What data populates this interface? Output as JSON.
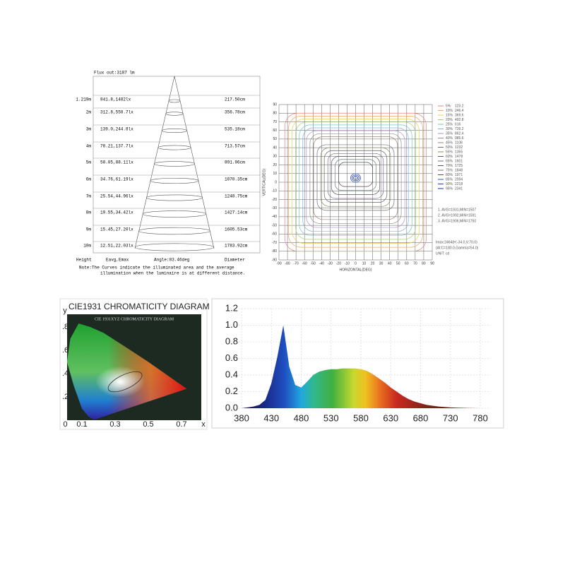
{
  "cone_diagram": {
    "flux": "Flux out:3187 lm",
    "rows": [
      [
        "1.219m",
        "841.8,1482lx",
        "217.50cm"
      ],
      [
        "2m",
        "312.8,550.7lx",
        "356.78cm"
      ],
      [
        "3m",
        "139.0,244.8lx",
        "535.18cm"
      ],
      [
        "4m",
        "78.21,137.7lx",
        "713.57cm"
      ],
      [
        "5m",
        "50.05,88.11lx",
        "891.96cm"
      ],
      [
        "6m",
        "34.76,61.19lx",
        "1070.35cm"
      ],
      [
        "7m",
        "25.54,44.96lx",
        "1248.75cm"
      ],
      [
        "8m",
        "19.55,34.42lx",
        "1427.14cm"
      ],
      [
        "9m",
        "15.45,27.20lx",
        "1605.53cm"
      ],
      [
        "10m",
        "12.51,22.03lx",
        "1783.92cm"
      ]
    ],
    "footer": [
      "Height",
      "Eavg,Emax",
      "Angle:83.46deg",
      "Diameter"
    ],
    "note": [
      "Note:The Curves indicate the illuminated area and the average",
      "illumination when the luminaire is at different distance."
    ]
  },
  "chart_data": [
    {
      "type": "contour",
      "x_label": "HORIZONTAL(DEG)",
      "y_label": "VERTICAL(DEG)",
      "xlim": [
        -90,
        90
      ],
      "ylim": [
        -90,
        90
      ],
      "xticks": [
        -90,
        -80,
        -70,
        -60,
        -50,
        -40,
        -30,
        -20,
        -10,
        0,
        10,
        20,
        30,
        40,
        50,
        60,
        70,
        80,
        90
      ],
      "yticks": [
        -90,
        -80,
        -70,
        -60,
        -50,
        -40,
        -30,
        -20,
        -10,
        0,
        10,
        20,
        30,
        40,
        50,
        60,
        70,
        80,
        90
      ],
      "grid": true,
      "levels": [
        {
          "name": "5%",
          "value": 123.2,
          "color": "#f08080"
        },
        {
          "name": "10%",
          "value": 246.4,
          "color": "#f4a460"
        },
        {
          "name": "15%",
          "value": 369.6,
          "color": "#e8d050"
        },
        {
          "name": "20%",
          "value": 492.8,
          "color": "#a0d070"
        },
        {
          "name": "25%",
          "value": 616.0,
          "color": "#70c8c0"
        },
        {
          "name": "30%",
          "value": 739.2,
          "color": "#80b0e0"
        },
        {
          "name": "35%",
          "value": 862.4,
          "color": "#b090d0"
        },
        {
          "name": "40%",
          "value": 985.6,
          "color": "#909090"
        },
        {
          "name": "45%",
          "value": 1108,
          "color": "#a08070"
        },
        {
          "name": "50%",
          "value": 1232,
          "color": "#707070"
        },
        {
          "name": "55%",
          "value": 1355,
          "color": "#8a8a6a"
        },
        {
          "name": "60%",
          "value": 1478,
          "color": "#606060"
        },
        {
          "name": "65%",
          "value": 1601,
          "color": "#7a6a8a"
        },
        {
          "name": "70%",
          "value": 1725,
          "color": "#555555"
        },
        {
          "name": "75%",
          "value": 1848,
          "color": "#6a7a7a"
        },
        {
          "name": "80%",
          "value": 1971,
          "color": "#505050"
        },
        {
          "name": "85%",
          "value": 2094,
          "color": "#3050c0"
        },
        {
          "name": "90%",
          "value": 2218,
          "color": "#2040b0"
        },
        {
          "name": "95%",
          "value": 2341,
          "color": "#1030a0"
        }
      ],
      "notes": [
        "1. AVG=1931,MIN=1507",
        "2. AVG=1992,MIN=1591",
        "3. AVG=1906,MIN=1750"
      ],
      "info": [
        "Imax:2464(H:-34.0,V:70.0)",
        "(At:C=180.0,Gamma=54.0)",
        "UNIT: cd"
      ]
    },
    {
      "type": "chromaticity",
      "title": "CIE1931 CHROMATICITY DIAGRAM",
      "inner_title": "CIE 1931XYZ CHROMATICITY DIAGRAM",
      "x_label": "x",
      "y_label": "y",
      "xlim": [
        0,
        0.8
      ],
      "ylim": [
        0,
        0.9
      ],
      "xticks": [
        0,
        0.1,
        0.3,
        0.5,
        0.7
      ],
      "yticks": [
        {
          "value": 0.2,
          "label": ".2"
        },
        {
          "value": 0.4,
          "label": ".4"
        },
        {
          "value": 0.6,
          "label": ".6"
        },
        {
          "value": 0.8,
          "label": ".8"
        }
      ]
    },
    {
      "type": "area",
      "x": [
        380,
        390,
        400,
        410,
        420,
        430,
        440,
        450,
        460,
        470,
        480,
        490,
        500,
        510,
        520,
        530,
        540,
        550,
        560,
        570,
        580,
        590,
        600,
        610,
        620,
        630,
        640,
        650,
        660,
        670,
        680,
        690,
        700,
        710,
        720,
        730,
        740,
        750,
        760,
        770,
        780
      ],
      "values": [
        0,
        0.01,
        0.02,
        0.04,
        0.1,
        0.3,
        0.62,
        1.0,
        0.5,
        0.28,
        0.25,
        0.32,
        0.4,
        0.44,
        0.46,
        0.47,
        0.47,
        0.48,
        0.48,
        0.48,
        0.47,
        0.45,
        0.41,
        0.36,
        0.31,
        0.25,
        0.2,
        0.15,
        0.11,
        0.08,
        0.06,
        0.04,
        0.03,
        0.02,
        0.015,
        0.01,
        0.006,
        0.004,
        0.002,
        0.001,
        0
      ],
      "xlim": [
        380,
        780
      ],
      "ylim": [
        0,
        1.2
      ],
      "xticks": [
        380,
        430,
        480,
        530,
        580,
        630,
        680,
        730,
        780
      ],
      "yticks": [
        {
          "value": 0,
          "label": "0.0"
        },
        0.2,
        0.4,
        0.6,
        0.8,
        {
          "value": 1,
          "label": "1.0"
        },
        1.2
      ],
      "grid": true
    }
  ]
}
